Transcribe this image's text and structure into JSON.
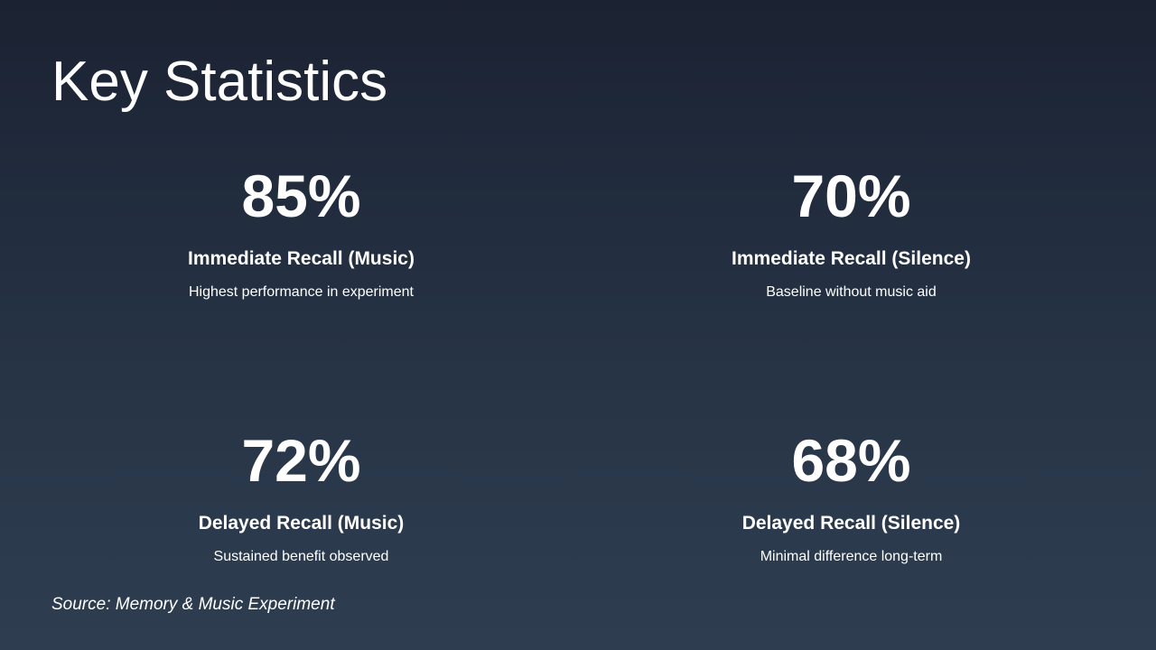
{
  "title": "Key Statistics",
  "stats": [
    {
      "value": "85%",
      "label": "Immediate Recall (Music)",
      "description": "Highest performance in experiment"
    },
    {
      "value": "70%",
      "label": "Immediate Recall (Silence)",
      "description": "Baseline without music aid"
    },
    {
      "value": "72%",
      "label": "Delayed Recall (Music)",
      "description": "Sustained benefit observed"
    },
    {
      "value": "68%",
      "label": "Delayed Recall (Silence)",
      "description": "Minimal difference long-term"
    }
  ],
  "source": "Source: Memory & Music Experiment",
  "colors": {
    "background_top": "#1b2232",
    "background_bottom": "#2e3e50",
    "text": "#ffffff"
  }
}
